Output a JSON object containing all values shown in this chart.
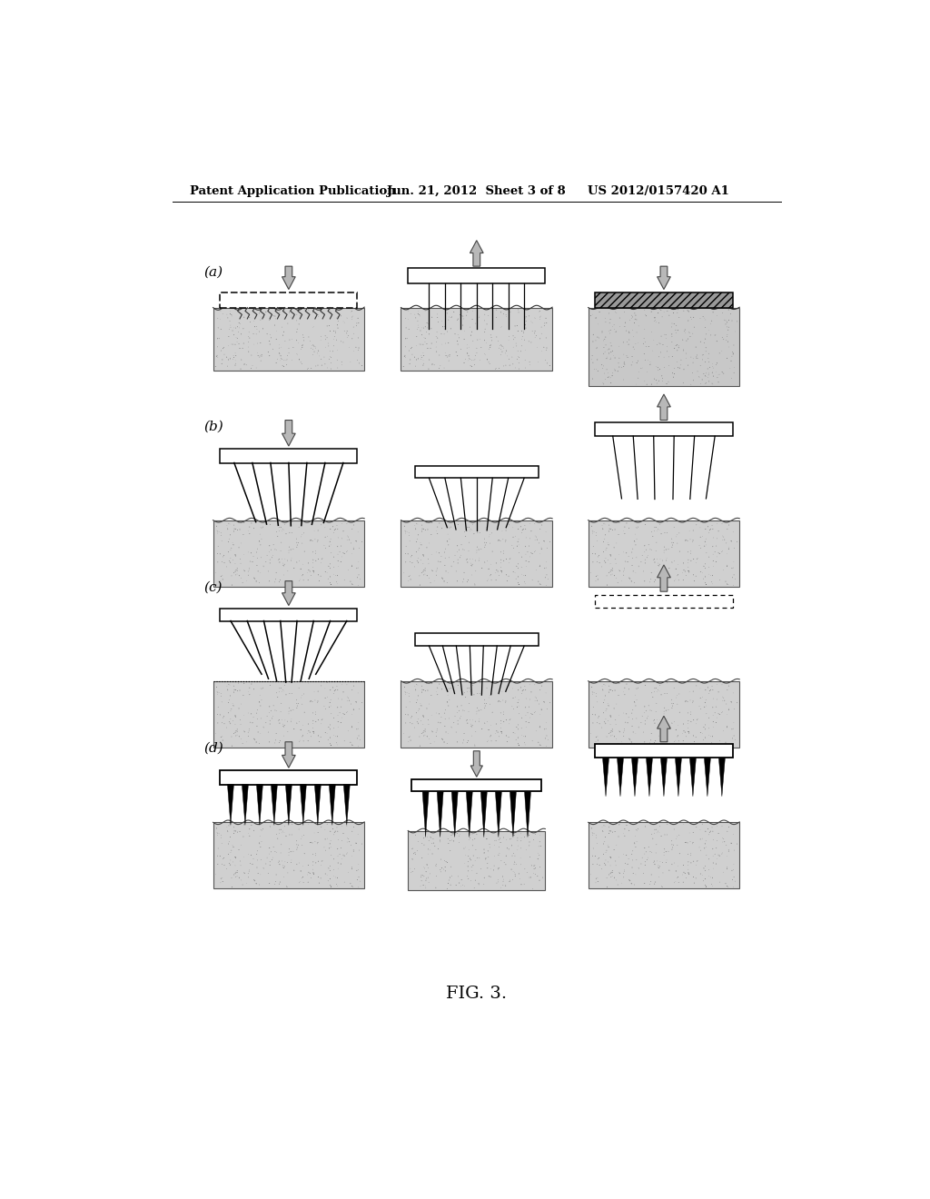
{
  "bg_color": "#ffffff",
  "header_left": "Patent Application Publication",
  "header_center": "Jun. 21, 2012  Sheet 3 of 8",
  "header_right": "US 2012/0157420 A1",
  "footer": "FIG. 3.",
  "row_labels": [
    "(a)",
    "(b)",
    "(c)",
    "(d)"
  ],
  "tissue_light": "#d8d8d8",
  "tissue_dark": "#aaaaaa",
  "tissue_darker": "#888888",
  "arrow_fc": "#b8b8b8",
  "arrow_ec": "#444444",
  "probe_fc": "#ffffff",
  "probe_ec": "#000000",
  "dark_probe_fc": "#888888"
}
